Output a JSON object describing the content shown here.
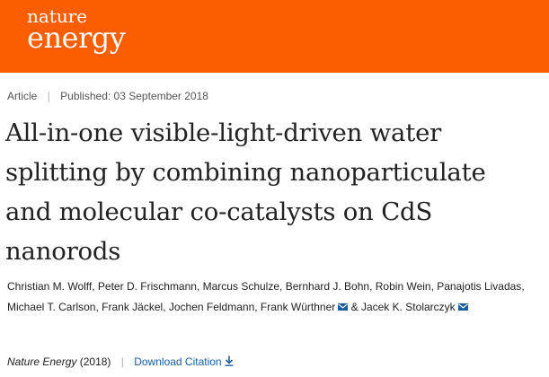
{
  "brand": {
    "line1": "nature",
    "line2": "energy",
    "color": "#fb5d01"
  },
  "meta": {
    "type": "Article",
    "published": "Published: 03 September 2018"
  },
  "article": {
    "title": "All-in-one visible-light-driven water splitting by combining nanoparticulate and molecular co-catalysts on CdS nanorods"
  },
  "authors": [
    {
      "name": "Christian M. Wolff",
      "mail": false
    },
    {
      "name": "Peter D. Frischmann",
      "mail": false
    },
    {
      "name": "Marcus Schulze",
      "mail": false
    },
    {
      "name": "Bernhard J. Bohn",
      "mail": false
    },
    {
      "name": "Robin Wein",
      "mail": false
    },
    {
      "name": "Panajotis Livadas",
      "mail": false
    },
    {
      "name": "Michael T. Carlson",
      "mail": false
    },
    {
      "name": "Frank Jäckel",
      "mail": false
    },
    {
      "name": "Jochen Feldmann",
      "mail": false
    },
    {
      "name": "Frank Würthner",
      "mail": true
    },
    {
      "name": "Jacek K. Stolarczyk",
      "mail": true
    }
  ],
  "footer": {
    "journal": "Nature Energy",
    "year": "(2018)",
    "download": "Download Citation",
    "link_color": "#1b5d9d"
  },
  "icons": {
    "mail": "mail-icon",
    "download": "download-icon"
  }
}
